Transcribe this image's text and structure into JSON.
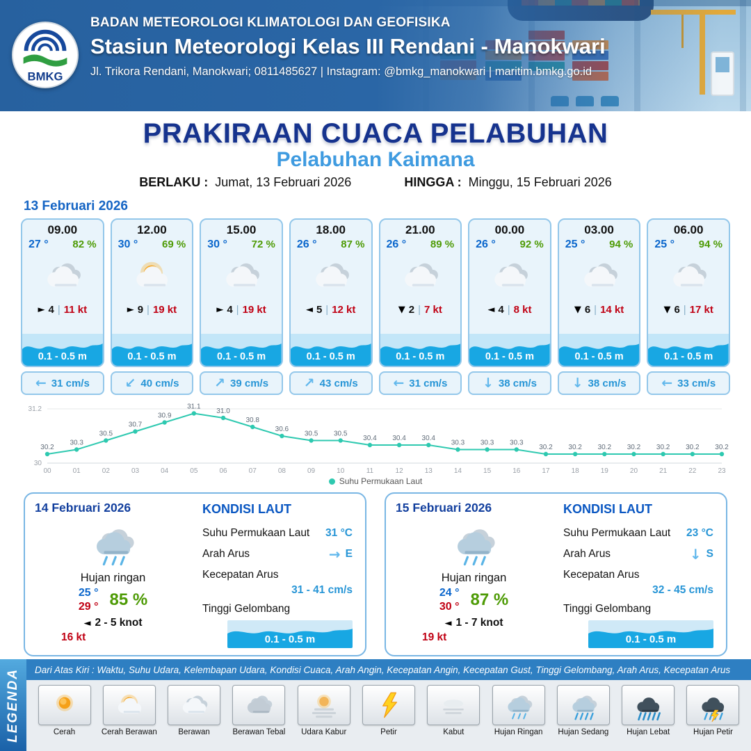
{
  "header": {
    "org": "BADAN METEOROLOGI KLIMATOLOGI DAN GEOFISIKA",
    "station": "Stasiun Meteorologi Kelas III Rendani - Manokwari",
    "address": "Jl. Trikora Rendani, Manokwari; 0811485627 | Instagram: @bmkg_manokwari | maritim.bmkg.go.id",
    "logo_text": "BMKG"
  },
  "title": {
    "main": "PRAKIRAAN CUACA PELABUHAN",
    "subtitle": "Pelabuhan Kaimana",
    "berlaku_label": "BERLAKU :",
    "berlaku_value": "Jumat, 13 Februari 2026",
    "hingga_label": "HINGGA :",
    "hingga_value": "Minggu, 15 Februari 2026"
  },
  "day1": {
    "date": "13 Februari 2026",
    "cards": [
      {
        "time": "09.00",
        "temp": "27 °",
        "rh": "82 %",
        "icon": "berawan",
        "wind_arrow": "►",
        "wind": "4",
        "gust": "11 kt",
        "wave": "0.1 - 0.5 m",
        "cur_arrow": "←",
        "current": "31 cm/s"
      },
      {
        "time": "12.00",
        "temp": "30 °",
        "rh": "69 %",
        "icon": "cerah-berawan",
        "wind_arrow": "►",
        "wind": "9",
        "gust": "19 kt",
        "wave": "0.1 - 0.5 m",
        "cur_arrow": "↙",
        "current": "40 cm/s"
      },
      {
        "time": "15.00",
        "temp": "30 °",
        "rh": "72 %",
        "icon": "berawan",
        "wind_arrow": "►",
        "wind": "4",
        "gust": "19 kt",
        "wave": "0.1 - 0.5 m",
        "cur_arrow": "↗",
        "current": "39 cm/s"
      },
      {
        "time": "18.00",
        "temp": "26 °",
        "rh": "87 %",
        "icon": "berawan",
        "wind_arrow": "◄",
        "wind": "5",
        "gust": "12 kt",
        "wave": "0.1 - 0.5 m",
        "cur_arrow": "↗",
        "current": "43 cm/s"
      },
      {
        "time": "21.00",
        "temp": "26 °",
        "rh": "89 %",
        "icon": "berawan",
        "wind_arrow": "▼",
        "wind": "2",
        "gust": "7 kt",
        "wave": "0.1 - 0.5 m",
        "cur_arrow": "←",
        "current": "31 cm/s"
      },
      {
        "time": "00.00",
        "temp": "26 °",
        "rh": "92 %",
        "icon": "berawan",
        "wind_arrow": "◄",
        "wind": "4",
        "gust": "8 kt",
        "wave": "0.1 - 0.5 m",
        "cur_arrow": "↓",
        "current": "38 cm/s"
      },
      {
        "time": "03.00",
        "temp": "25 °",
        "rh": "94 %",
        "icon": "berawan",
        "wind_arrow": "▼",
        "wind": "6",
        "gust": "14 kt",
        "wave": "0.1 - 0.5 m",
        "cur_arrow": "↓",
        "current": "38 cm/s"
      },
      {
        "time": "06.00",
        "temp": "25 °",
        "rh": "94 %",
        "icon": "berawan",
        "wind_arrow": "▼",
        "wind": "6",
        "gust": "17 kt",
        "wave": "0.1 - 0.5 m",
        "cur_arrow": "←",
        "current": "33 cm/s"
      }
    ]
  },
  "chart_data": {
    "type": "line",
    "x": [
      "00",
      "01",
      "02",
      "03",
      "04",
      "05",
      "06",
      "07",
      "08",
      "09",
      "10",
      "11",
      "12",
      "13",
      "14",
      "15",
      "16",
      "17",
      "18",
      "19",
      "20",
      "21",
      "22",
      "23"
    ],
    "values": [
      30.2,
      30.3,
      30.5,
      30.7,
      30.9,
      31.1,
      31.0,
      30.8,
      30.6,
      30.5,
      30.5,
      30.4,
      30.4,
      30.4,
      30.3,
      30.3,
      30.3,
      30.2,
      30.2,
      30.2,
      30.2,
      30.2,
      30.2,
      30.2
    ],
    "ylim": [
      30,
      31.2
    ],
    "series_name": "Suhu Permukaan Laut",
    "color": "#2ec9b0",
    "grid": true,
    "legend_position": "bottom"
  },
  "labels": {
    "kondisi_laut": "KONDISI LAUT",
    "sst": "Suhu Permukaan Laut",
    "arah_arus": "Arah Arus",
    "kec_arus": "Kecepatan Arus",
    "tinggi_gel": "Tinggi Gelombang"
  },
  "days": [
    {
      "date": "14 Februari 2026",
      "icon": "hujan-ringan",
      "condition": "Hujan ringan",
      "temp_min": "25 °",
      "temp_max": "29 °",
      "rh": "85 %",
      "wind_arrow": "◄",
      "wind_range": "2 - 5 knot",
      "gust": "16 kt",
      "sst": "31 °C",
      "cur_arrow": "→",
      "cur_dir": "E",
      "cur_range": "31 - 41 cm/s",
      "wave": "0.1 - 0.5 m"
    },
    {
      "date": "15 Februari 2026",
      "icon": "hujan-ringan",
      "condition": "Hujan ringan",
      "temp_min": "24 °",
      "temp_max": "30 °",
      "rh": "87 %",
      "wind_arrow": "◄",
      "wind_range": "1 - 7 knot",
      "gust": "19 kt",
      "sst": "23 °C",
      "cur_arrow": "↓",
      "cur_dir": "S",
      "cur_range": "32 - 45 cm/s",
      "wave": "0.1 - 0.5 m"
    }
  ],
  "legend": {
    "title": "LEGENDA",
    "note": "Dari Atas Kiri : Waktu, Suhu Udara, Kelembapan Udara, Kondisi Cuaca, Arah Angin, Kecepatan Angin, Kecepatan Gust, Tinggi Gelombang, Arah Arus, Kecepatan Arus",
    "items": [
      {
        "label": "Cerah",
        "icon": "cerah"
      },
      {
        "label": "Cerah Berawan",
        "icon": "cerah-berawan"
      },
      {
        "label": "Berawan",
        "icon": "berawan"
      },
      {
        "label": "Berawan Tebal",
        "icon": "berawan-tebal"
      },
      {
        "label": "Udara Kabur",
        "icon": "udara-kabur"
      },
      {
        "label": "Petir",
        "icon": "petir"
      },
      {
        "label": "Kabut",
        "icon": "kabut"
      },
      {
        "label": "Hujan Ringan",
        "icon": "hujan-ringan"
      },
      {
        "label": "Hujan Sedang",
        "icon": "hujan-sedang"
      },
      {
        "label": "Hujan Lebat",
        "icon": "hujan-lebat"
      },
      {
        "label": "Hujan Petir",
        "icon": "hujan-petir"
      }
    ]
  }
}
